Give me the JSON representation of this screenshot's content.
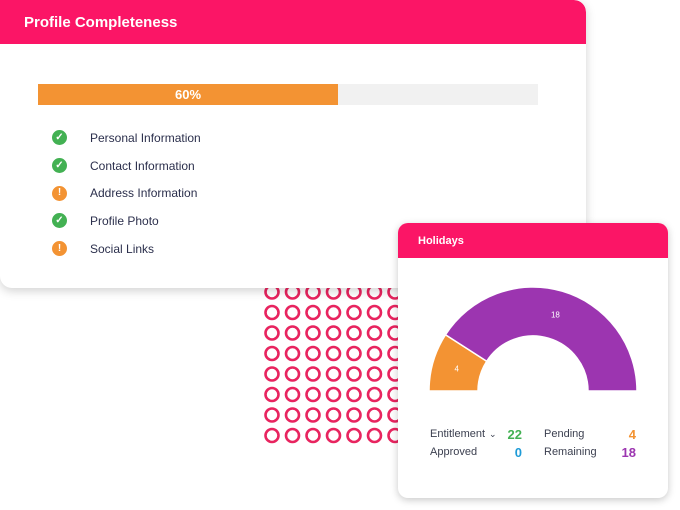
{
  "profile": {
    "title": "Profile Completeness",
    "progress_label": "60%",
    "progress_fraction": 0.6,
    "items": [
      {
        "label": "Personal Information",
        "status": "complete",
        "icon": "check-icon"
      },
      {
        "label": "Contact Information",
        "status": "complete",
        "icon": "check-icon"
      },
      {
        "label": "Address Information",
        "status": "incomplete",
        "icon": "exclamation-icon"
      },
      {
        "label": "Profile Photo",
        "status": "complete",
        "icon": "check-icon"
      },
      {
        "label": "Social Links",
        "status": "incomplete",
        "icon": "exclamation-icon"
      }
    ]
  },
  "holidays": {
    "title": "Holidays",
    "entitlement_label": "Entitlement",
    "entitlement_value": "22",
    "approved_label": "Approved",
    "approved_value": "0",
    "pending_label": "Pending",
    "pending_value": "4",
    "remaining_label": "Remaining",
    "remaining_value": "18"
  },
  "colors": {
    "brand": "#fb1566",
    "complete": "#43b153",
    "incomplete": "#f39333",
    "entitlement": "#43b153",
    "approved": "#1e9bd7",
    "pending": "#f39333",
    "remaining": "#9c35b0",
    "ring_pattern": "#e8245f"
  },
  "chart_data": {
    "type": "pie",
    "subtype": "half-donut",
    "slices": [
      {
        "label": "4",
        "value": 4,
        "color": "#f39333"
      },
      {
        "label": "18",
        "value": 18,
        "color": "#9c35b0"
      }
    ],
    "total": 22
  }
}
